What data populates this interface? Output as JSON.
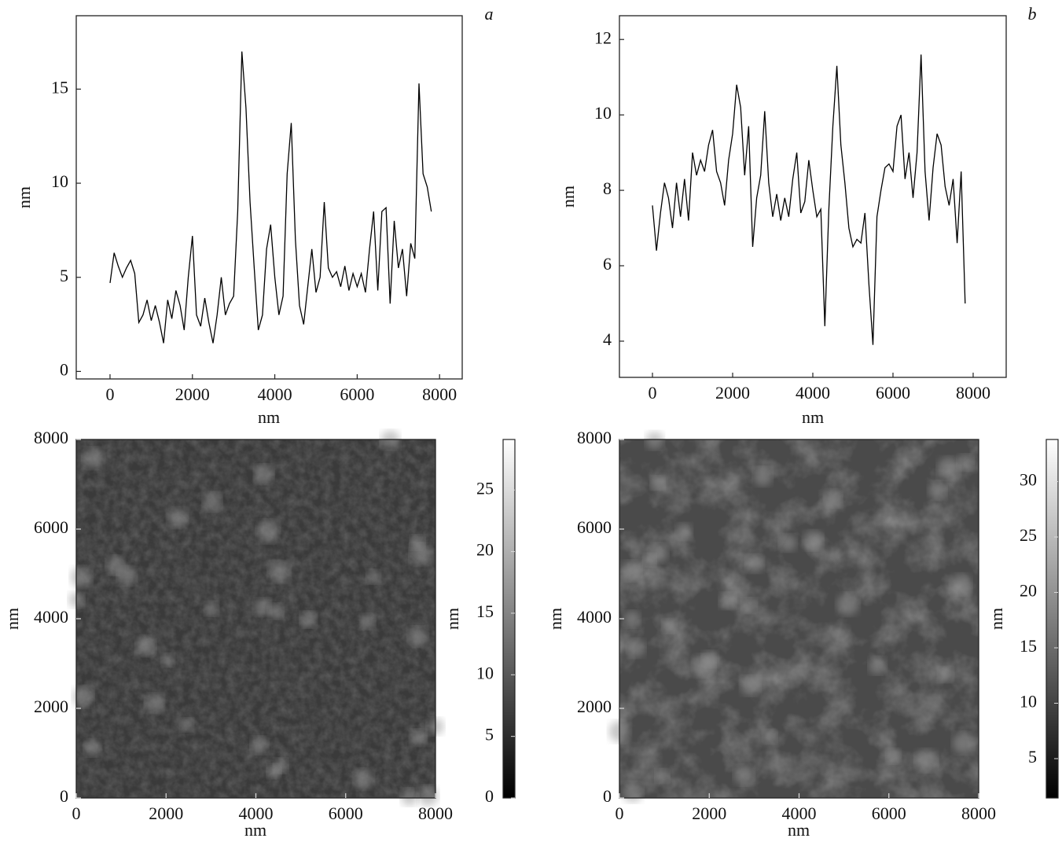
{
  "chart_data": [
    {
      "type": "line",
      "panel_label": "a",
      "xlabel": "nm",
      "ylabel": "nm",
      "color": "#000000",
      "x": [
        0,
        100,
        200,
        300,
        400,
        500,
        600,
        700,
        800,
        900,
        1000,
        1100,
        1200,
        1300,
        1400,
        1500,
        1600,
        1700,
        1800,
        1900,
        2000,
        2100,
        2200,
        2300,
        2400,
        2500,
        2600,
        2700,
        2800,
        2900,
        3000,
        3100,
        3200,
        3300,
        3400,
        3500,
        3600,
        3700,
        3800,
        3900,
        4000,
        4100,
        4200,
        4300,
        4400,
        4500,
        4600,
        4700,
        4800,
        4900,
        5000,
        5100,
        5200,
        5300,
        5400,
        5500,
        5600,
        5700,
        5800,
        5900,
        6000,
        6100,
        6200,
        6300,
        6400,
        6500,
        6600,
        6700,
        6800,
        6900,
        7000,
        7100,
        7200,
        7300,
        7400,
        7500,
        7600,
        7700,
        7800
      ],
      "values": [
        4.7,
        6.3,
        5.6,
        5.0,
        5.5,
        5.9,
        5.2,
        2.6,
        3.0,
        3.8,
        2.7,
        3.5,
        2.6,
        1.5,
        3.8,
        2.8,
        4.3,
        3.5,
        2.2,
        5.0,
        7.2,
        3.0,
        2.4,
        3.9,
        2.6,
        1.5,
        3.0,
        5.0,
        3.0,
        3.6,
        4.0,
        8.5,
        17.0,
        14.0,
        9.0,
        5.5,
        2.2,
        3.0,
        6.5,
        7.8,
        5.0,
        3.0,
        4.0,
        10.5,
        13.2,
        7.0,
        3.5,
        2.5,
        4.5,
        6.5,
        4.2,
        5.0,
        9.0,
        5.5,
        5.0,
        5.3,
        4.5,
        5.6,
        4.3,
        5.2,
        4.5,
        5.2,
        4.2,
        6.5,
        8.5,
        4.3,
        8.5,
        8.7,
        3.6,
        8.0,
        5.5,
        6.5,
        4.0,
        6.8,
        6.0,
        15.3,
        10.5,
        9.8,
        8.5
      ],
      "xlim": [
        -820,
        8550
      ],
      "ylim": [
        -0.4,
        18.9
      ],
      "xticks": [
        0,
        2000,
        4000,
        6000,
        8000
      ],
      "yticks": [
        0,
        5,
        10,
        15
      ]
    },
    {
      "type": "line",
      "panel_label": "b",
      "xlabel": "nm",
      "ylabel": "nm",
      "color": "#000000",
      "x": [
        0,
        100,
        200,
        300,
        400,
        500,
        600,
        700,
        800,
        900,
        1000,
        1100,
        1200,
        1300,
        1400,
        1500,
        1600,
        1700,
        1800,
        1900,
        2000,
        2100,
        2200,
        2300,
        2400,
        2500,
        2600,
        2700,
        2800,
        2900,
        3000,
        3100,
        3200,
        3300,
        3400,
        3500,
        3600,
        3700,
        3800,
        3900,
        4000,
        4100,
        4200,
        4300,
        4400,
        4500,
        4600,
        4700,
        4800,
        4900,
        5000,
        5100,
        5200,
        5300,
        5400,
        5500,
        5600,
        5700,
        5800,
        5900,
        6000,
        6100,
        6200,
        6300,
        6400,
        6500,
        6600,
        6700,
        6800,
        6900,
        7000,
        7100,
        7200,
        7300,
        7400,
        7500,
        7600,
        7700,
        7800
      ],
      "values": [
        7.6,
        6.4,
        7.4,
        8.2,
        7.8,
        7.0,
        8.2,
        7.3,
        8.3,
        7.2,
        9.0,
        8.4,
        8.8,
        8.5,
        9.2,
        9.6,
        8.5,
        8.2,
        7.6,
        8.8,
        9.5,
        10.8,
        10.2,
        8.4,
        9.7,
        6.5,
        7.8,
        8.4,
        10.1,
        8.2,
        7.3,
        7.9,
        7.2,
        7.8,
        7.3,
        8.3,
        9.0,
        7.4,
        7.7,
        8.8,
        8.0,
        7.3,
        7.5,
        4.4,
        7.5,
        9.7,
        11.3,
        9.2,
        8.2,
        7.0,
        6.5,
        6.7,
        6.6,
        7.4,
        5.5,
        3.9,
        7.3,
        8.0,
        8.6,
        8.7,
        8.5,
        9.7,
        10.0,
        8.3,
        9.0,
        7.8,
        9.0,
        11.6,
        8.5,
        7.2,
        8.6,
        9.5,
        9.2,
        8.1,
        7.6,
        8.3,
        6.6,
        8.5,
        5.0
      ],
      "xlim": [
        -824,
        8824
      ],
      "ylim": [
        3.04,
        12.63
      ],
      "xticks": [
        0,
        2000,
        4000,
        6000,
        8000
      ],
      "yticks": [
        4,
        6,
        8,
        10,
        12
      ]
    },
    {
      "type": "image",
      "xlabel": "nm",
      "ylabel": "nm",
      "colormap": "gray",
      "xlim": [
        0,
        8000
      ],
      "ylim": [
        0,
        8000
      ],
      "xticks": [
        0,
        2000,
        4000,
        6000,
        8000
      ],
      "yticks": [
        0,
        2000,
        4000,
        6000,
        8000
      ],
      "colorbar": {
        "label": "nm",
        "lim": [
          0,
          29.1
        ],
        "ticks": [
          0,
          5,
          10,
          15,
          20,
          25
        ]
      }
    },
    {
      "type": "image",
      "xlabel": "nm",
      "ylabel": "nm",
      "colormap": "gray",
      "xlim": [
        0,
        8000
      ],
      "ylim": [
        0,
        8000
      ],
      "xticks": [
        0,
        2000,
        4000,
        6000,
        8000
      ],
      "yticks": [
        0,
        2000,
        4000,
        6000,
        8000
      ],
      "colorbar": {
        "label": "nm",
        "lim": [
          1.45,
          33.8
        ],
        "ticks": [
          5,
          10,
          15,
          20,
          25,
          30
        ]
      }
    }
  ]
}
